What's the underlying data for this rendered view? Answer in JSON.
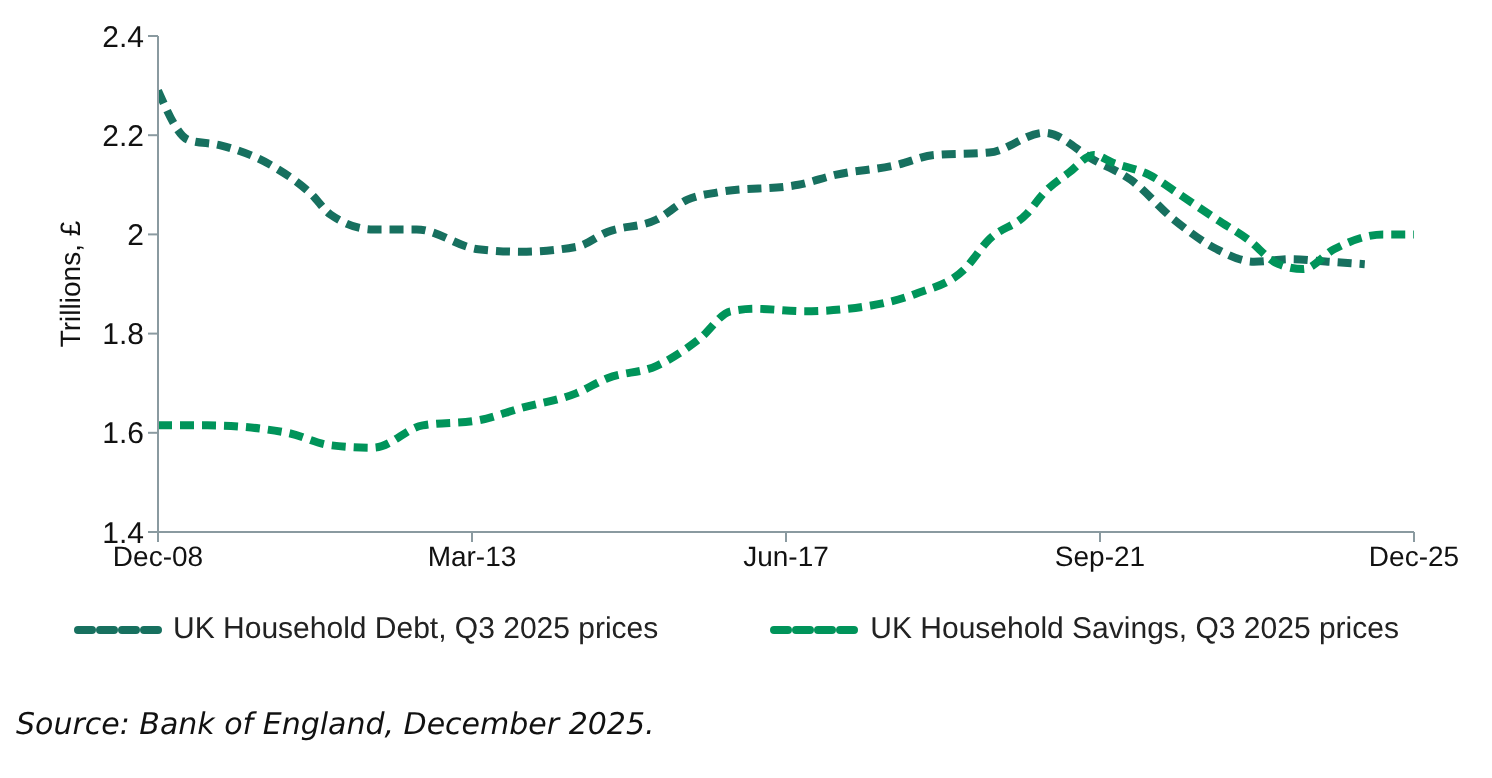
{
  "chart_data": {
    "type": "line",
    "ylabel": "Trillions, £",
    "xlim": [
      "2008-12",
      "2025-12"
    ],
    "xticks": [
      {
        "value": "2008-12",
        "label": "Dec-08"
      },
      {
        "value": "2013-03",
        "label": "Mar-13"
      },
      {
        "value": "2017-06",
        "label": "Jun-17"
      },
      {
        "value": "2021-09",
        "label": "Sep-21"
      },
      {
        "value": "2025-12",
        "label": "Dec-25"
      }
    ],
    "ylim": [
      1.4,
      2.4
    ],
    "yticks": [
      1.4,
      1.6,
      1.8,
      2,
      2.2,
      2.4
    ],
    "grid": false,
    "legend": "bottom",
    "marker": "none",
    "line_style": "dashed",
    "series": [
      {
        "name": "UK Household Debt, Q3 2025 prices",
        "color": "#17705f",
        "x": [
          "2008-12",
          "2009-05",
          "2009-10",
          "2010-07",
          "2011-01",
          "2011-04",
          "2011-11",
          "2012-06",
          "2013-04",
          "2013-11",
          "2014-08",
          "2015-01",
          "2015-09",
          "2016-02",
          "2016-07",
          "2017-08",
          "2018-02",
          "2018-12",
          "2019-06",
          "2020-03",
          "2020-12",
          "2021-08",
          "2022-02",
          "2022-09",
          "2023-04",
          "2023-10",
          "2024-04",
          "2024-10",
          "2025-04"
        ],
        "values": [
          2.29,
          2.19,
          2.18,
          2.135,
          2.08,
          2.04,
          2.01,
          2.01,
          1.97,
          1.965,
          1.975,
          2.005,
          2.03,
          2.07,
          2.085,
          2.1,
          2.12,
          2.14,
          2.16,
          2.165,
          2.205,
          2.15,
          2.11,
          2.03,
          1.97,
          1.945,
          1.95,
          1.945,
          1.94
        ]
      },
      {
        "name": "UK Household Savings, Q3 2025 prices",
        "color": "#00945a",
        "x": [
          "2008-12",
          "2009-08",
          "2010-09",
          "2011-04",
          "2011-11",
          "2012-07",
          "2013-04",
          "2013-11",
          "2014-08",
          "2015-01",
          "2015-09",
          "2016-04",
          "2016-09",
          "2017-01",
          "2017-09",
          "2018-04",
          "2019-03",
          "2019-11",
          "2020-03",
          "2020-09",
          "2020-12",
          "2021-04",
          "2021-08",
          "2021-11",
          "2022-05",
          "2022-10",
          "2023-04",
          "2023-09",
          "2024-02",
          "2024-06",
          "2024-11",
          "2025-07",
          "2025-12"
        ],
        "values": [
          1.615,
          1.615,
          1.6,
          1.575,
          1.57,
          1.615,
          1.625,
          1.65,
          1.68,
          1.71,
          1.735,
          1.79,
          1.845,
          1.85,
          1.845,
          1.85,
          1.88,
          1.93,
          1.99,
          2.04,
          2.085,
          2.125,
          2.16,
          2.145,
          2.12,
          2.08,
          2.03,
          1.99,
          1.94,
          1.93,
          1.97,
          2.0,
          2.0
        ]
      }
    ],
    "annotations": [
      "Source: Bank of England, December 2025."
    ]
  }
}
